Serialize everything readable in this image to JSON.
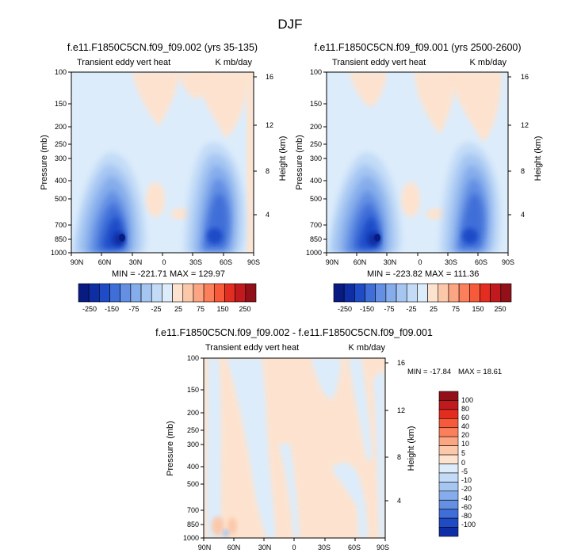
{
  "figure": {
    "title": "DJF"
  },
  "colors": {
    "pos": [
      "#fde3cf",
      "#fcc8aa",
      "#fca582",
      "#fb7f5b",
      "#f65a3a",
      "#e22d20",
      "#c0191e",
      "#92101a"
    ],
    "neg": [
      "#dcecfb",
      "#c3dbf7",
      "#a6c6f2",
      "#86adeb",
      "#648fe3",
      "#3f6ed8",
      "#1f4bc7",
      "#0f2ea5",
      "#081b80"
    ],
    "stipple": "#cfe2f9"
  },
  "chart_data": [
    {
      "id": "panel1",
      "type": "heatmap",
      "title": "f.e11.F1850C5CN.f09_f09.002 (yrs 35-135)",
      "left_label": "Transient eddy vert heat",
      "right_label": "K mb/day",
      "ylabel": "Pressure (mb)",
      "ylabel_right": "Height (km)",
      "x_ticks": [
        "90N",
        "60N",
        "30N",
        "0",
        "30S",
        "60S",
        "90S"
      ],
      "y_ticks": [
        "100",
        "150",
        "200",
        "250",
        "300",
        "400",
        "500",
        "700",
        "850",
        "1000"
      ],
      "y2_ticks": [
        "16",
        "12",
        "8",
        "4"
      ],
      "min_label": "MIN = -221.71",
      "max_label": "MAX = 129.97",
      "levels": [
        -250,
        -200,
        -150,
        -100,
        -75,
        -50,
        -25,
        -5,
        5,
        25,
        50,
        75,
        100,
        150,
        200,
        250
      ],
      "colorbar_labels": [
        "-250",
        "-150",
        "-75",
        "-25",
        "25",
        "75",
        "150",
        "250"
      ]
    },
    {
      "id": "panel2",
      "type": "heatmap",
      "title": "f.e11.F1850C5CN.f09_f09.001 (yrs 2500-2600)",
      "left_label": "Transient eddy vert heat",
      "right_label": "K mb/day",
      "ylabel": "Pressure (mb)",
      "ylabel_right": "Height (km)",
      "x_ticks": [
        "90N",
        "60N",
        "30N",
        "0",
        "30S",
        "60S",
        "90S"
      ],
      "y_ticks": [
        "100",
        "150",
        "200",
        "250",
        "300",
        "400",
        "500",
        "700",
        "850",
        "1000"
      ],
      "y2_ticks": [
        "16",
        "12",
        "8",
        "4"
      ],
      "min_label": "MIN = -223.82",
      "max_label": "MAX = 111.36",
      "levels": [
        -250,
        -200,
        -150,
        -100,
        -75,
        -50,
        -25,
        -5,
        5,
        25,
        50,
        75,
        100,
        150,
        200,
        250
      ],
      "colorbar_labels": [
        "-250",
        "-150",
        "-75",
        "-25",
        "25",
        "75",
        "150",
        "250"
      ]
    },
    {
      "id": "panel3",
      "type": "heatmap",
      "title": "f.e11.F1850C5CN.f09_f09.002 - f.e11.F1850C5CN.f09_f09.001",
      "left_label": "Transient eddy vert heat",
      "right_label": "K mb/day",
      "ylabel": "Pressure (mb)",
      "ylabel_right": "Height (km)",
      "x_ticks": [
        "90N",
        "60N",
        "30N",
        "0",
        "30S",
        "60S",
        "90S"
      ],
      "y_ticks": [
        "100",
        "150",
        "200",
        "250",
        "300",
        "400",
        "500",
        "700",
        "850",
        "1000"
      ],
      "y2_ticks": [
        "16",
        "12",
        "8",
        "4"
      ],
      "min_label": "MIN = -17.84",
      "max_label": "MAX =  18.61",
      "levels": [
        -100,
        -80,
        -60,
        -40,
        -20,
        -10,
        -5,
        0,
        5,
        10,
        20,
        40,
        60,
        80,
        100
      ],
      "colorbar_labels": [
        "100",
        "80",
        "60",
        "40",
        "20",
        "10",
        "5",
        "0",
        "-5",
        "-10",
        "-20",
        "-40",
        "-60",
        "-80",
        "-100"
      ]
    }
  ]
}
